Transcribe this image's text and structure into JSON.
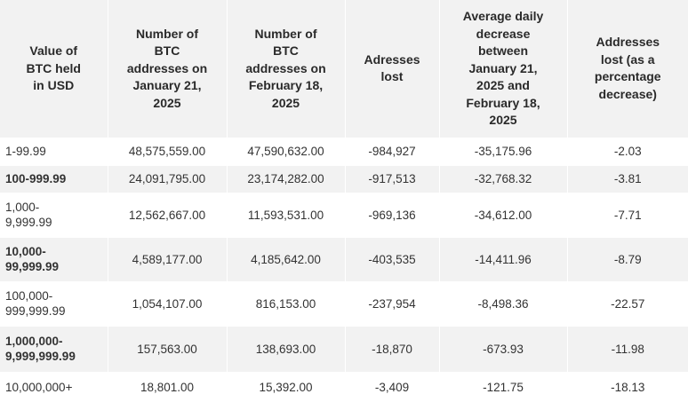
{
  "table": {
    "headers": [
      "Value of BTC held in USD",
      "Number of BTC addresses on January 21, 2025",
      "Number of BTC addresses on February 18, 2025",
      "Adresses lost",
      "Average daily decrease between January 21, 2025 and February 18, 2025",
      "Addresses lost (as a percentage decrease)"
    ],
    "header_lines": [
      [
        "Value of",
        "BTC held",
        "in USD"
      ],
      [
        "Number of",
        "BTC",
        "addresses on",
        "January 21,",
        "2025"
      ],
      [
        "Number of",
        "BTC",
        "addresses on",
        "February 18,",
        "2025"
      ],
      [
        "Adresses",
        "lost"
      ],
      [
        "Average daily",
        "decrease",
        "between",
        "January 21,",
        "2025 and",
        "February 18,",
        "2025"
      ],
      [
        "Addresses",
        "lost (as a",
        "percentage",
        "decrease)"
      ]
    ],
    "rows": [
      {
        "range_lines": [
          "1-99.99"
        ],
        "jan": "48,575,559.00",
        "feb": "47,590,632.00",
        "lost": "-984,927",
        "daily": "-35,175.96",
        "pct": "-2.03"
      },
      {
        "range_lines": [
          "100-999.99"
        ],
        "jan": "24,091,795.00",
        "feb": "23,174,282.00",
        "lost": "-917,513",
        "daily": "-32,768.32",
        "pct": "-3.81"
      },
      {
        "range_lines": [
          "1,000-",
          "9,999.99"
        ],
        "jan": "12,562,667.00",
        "feb": "11,593,531.00",
        "lost": "-969,136",
        "daily": "-34,612.00",
        "pct": "-7.71"
      },
      {
        "range_lines": [
          "10,000-",
          "99,999.99"
        ],
        "jan": "4,589,177.00",
        "feb": "4,185,642.00",
        "lost": "-403,535",
        "daily": "-14,411.96",
        "pct": "-8.79"
      },
      {
        "range_lines": [
          "100,000-",
          "999,999.99"
        ],
        "jan": "1,054,107.00",
        "feb": "816,153.00",
        "lost": "-237,954",
        "daily": "-8,498.36",
        "pct": "-22.57"
      },
      {
        "range_lines": [
          "1,000,000-",
          "9,999,999.99"
        ],
        "jan": "157,563.00",
        "feb": "138,693.00",
        "lost": "-18,870",
        "daily": "-673.93",
        "pct": "-11.98"
      },
      {
        "range_lines": [
          "10,000,000+"
        ],
        "jan": "18,801.00",
        "feb": "15,392.00",
        "lost": "-3,409",
        "daily": "-121.75",
        "pct": "-18.13"
      }
    ]
  },
  "colors": {
    "header_bg": "#f2f2f2",
    "alt_row_bg": "#f2f2f2",
    "text": "#2b2b2b",
    "divider": "#ffffff"
  }
}
